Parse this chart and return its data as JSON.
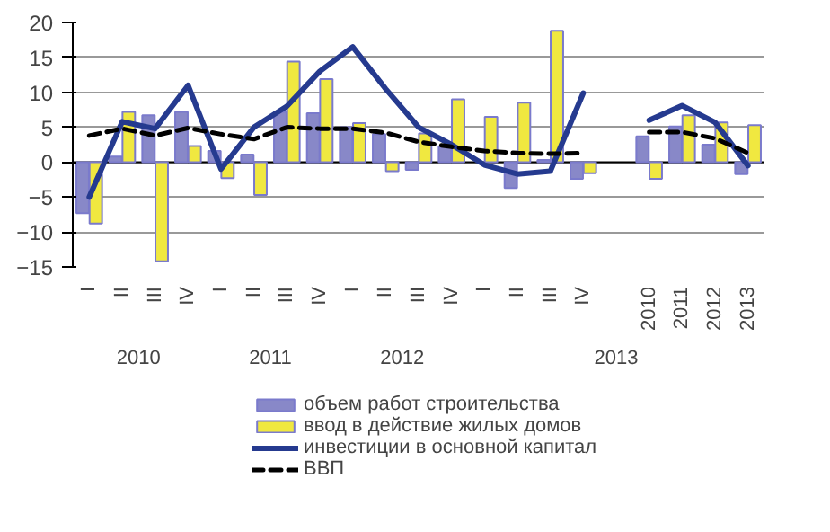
{
  "chart_data": {
    "type": "bar",
    "categories": [
      "I",
      "II",
      "III",
      "IV",
      "I",
      "II",
      "III",
      "IV",
      "I",
      "II",
      "III",
      "IV",
      "I",
      "II",
      "III",
      "IV",
      null,
      "2010",
      "2011",
      "2012",
      "2013"
    ],
    "annotations": [
      "2010",
      "2011",
      "2012",
      "2013"
    ],
    "ylim": [
      -15,
      20
    ],
    "yticks": [
      -15,
      -10,
      -5,
      0,
      5,
      10,
      15,
      20
    ],
    "grid": "y",
    "legend": "bottom",
    "series": [
      {
        "name": "объем работ строительства",
        "color": "#8888c8",
        "values": [
          -7.3,
          0.8,
          6.7,
          7.2,
          1.6,
          1.1,
          7.2,
          7.0,
          5.0,
          4.0,
          -1.1,
          2.2,
          null,
          -3.7,
          0.3,
          -2.4,
          null,
          3.7,
          5.1,
          2.5,
          -1.7
        ]
      },
      {
        "name": "ввод в действие жилых домов",
        "color": "#f0e840",
        "values": [
          -8.8,
          7.2,
          -14.2,
          2.3,
          -2.3,
          -4.7,
          14.4,
          11.9,
          5.6,
          -1.3,
          4.1,
          9.0,
          6.5,
          8.5,
          18.8,
          -1.6,
          null,
          -2.4,
          6.7,
          5.7,
          5.3
        ]
      },
      {
        "name": "инвестиции в основной капитал",
        "color": "#253a8f",
        "type": "line",
        "line_style": "solid",
        "values": [
          -5.0,
          5.8,
          4.8,
          11.0,
          -1.0,
          5.0,
          8.0,
          13.0,
          16.5,
          10.5,
          5.0,
          2.5,
          -0.4,
          -1.7,
          -1.3,
          9.9,
          null,
          6.0,
          8.1,
          5.7,
          -0.5
        ]
      },
      {
        "name": "ВВП",
        "color": "#000000",
        "type": "line",
        "line_style": "dashed",
        "values": [
          3.8,
          4.8,
          3.8,
          4.9,
          4.0,
          3.3,
          5.0,
          4.8,
          4.8,
          4.2,
          2.9,
          2.2,
          1.6,
          1.3,
          1.2,
          1.3,
          null,
          4.3,
          4.3,
          3.4,
          1.3
        ]
      }
    ]
  }
}
